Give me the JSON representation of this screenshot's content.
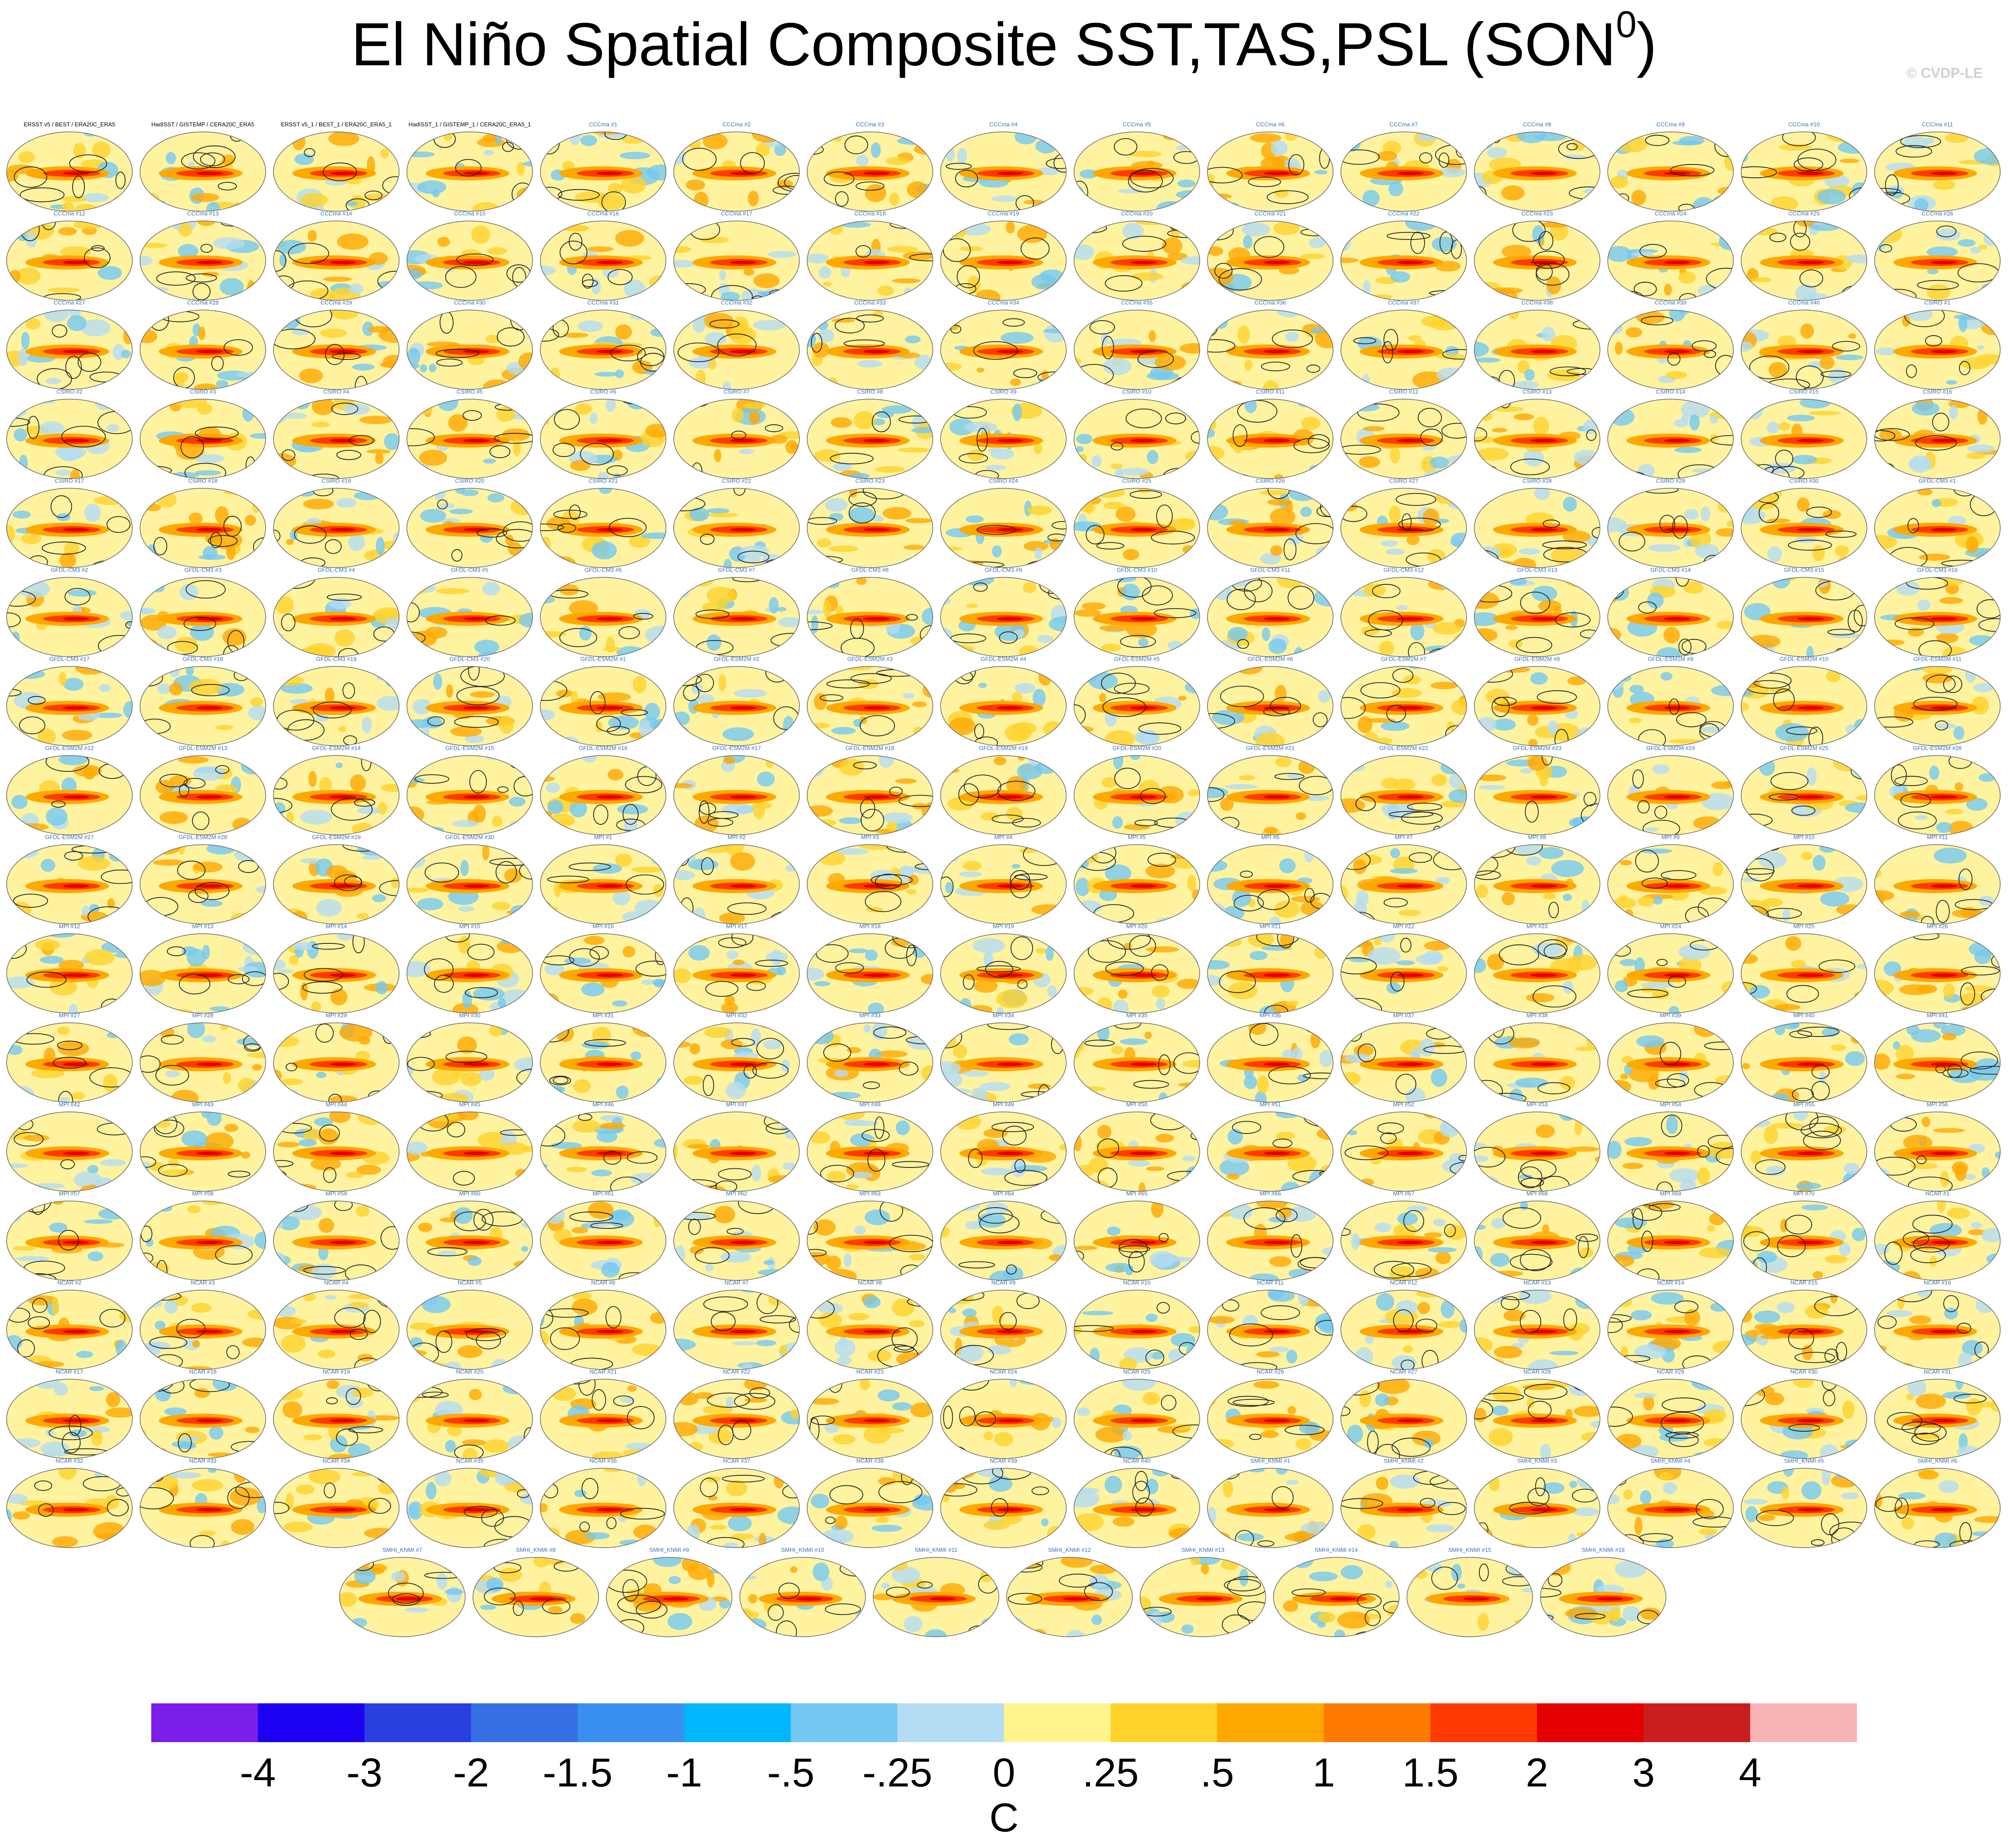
{
  "chart_data": {
    "type": "map-panel-grid",
    "title": "El Niño Spatial Composite SST,TAS,PSL (SON",
    "title_superscript": "0",
    "title_end": ")",
    "watermark": "© CVDP-LE",
    "panels": [
      "ERSST v5 / BEST / ERA20C_ERA5",
      "HadISST / GISTEMP / CERA20C_ERA5",
      "ERSST v5_1 / BEST_1 / ERA20C_ERA5_1",
      "HadISST_1 / GISTEMP_1 / CERA20C_ERA5_1",
      "CCCma #1",
      "CCCma #2",
      "CCCma #3",
      "CCCma #4",
      "CCCma #5",
      "CCCma #6",
      "CCCma #7",
      "CCCma #8",
      "CCCma #9",
      "CCCma #10",
      "CCCma #11",
      "CCCma #12",
      "CCCma #13",
      "CCCma #14",
      "CCCma #15",
      "CCCma #16",
      "CCCma #17",
      "CCCma #18",
      "CCCma #19",
      "CCCma #20",
      "CCCma #21",
      "CCCma #22",
      "CCCma #23",
      "CCCma #24",
      "CCCma #25",
      "CCCma #26",
      "CCCma #27",
      "CCCma #28",
      "CCCma #29",
      "CCCma #30",
      "CCCma #31",
      "CCCma #32",
      "CCCma #33",
      "CCCma #34",
      "CCCma #35",
      "CCCma #36",
      "CCCma #37",
      "CCCma #38",
      "CCCma #39",
      "CCCma #40",
      "CSIRO #1",
      "CSIRO #2",
      "CSIRO #3",
      "CSIRO #4",
      "CSIRO #5",
      "CSIRO #6",
      "CSIRO #7",
      "CSIRO #8",
      "CSIRO #9",
      "CSIRO #10",
      "CSIRO #11",
      "CSIRO #12",
      "CSIRO #13",
      "CSIRO #14",
      "CSIRO #15",
      "CSIRO #16",
      "CSIRO #17",
      "CSIRO #18",
      "CSIRO #19",
      "CSIRO #20",
      "CSIRO #21",
      "CSIRO #22",
      "CSIRO #23",
      "CSIRO #24",
      "CSIRO #25",
      "CSIRO #26",
      "CSIRO #27",
      "CSIRO #28",
      "CSIRO #29",
      "CSIRO #30",
      "GFDL-CM3 #1",
      "GFDL-CM3 #2",
      "GFDL-CM3 #3",
      "GFDL-CM3 #4",
      "GFDL-CM3 #5",
      "GFDL-CM3 #6",
      "GFDL-CM3 #7",
      "GFDL-CM3 #8",
      "GFDL-CM3 #9",
      "GFDL-CM3 #10",
      "GFDL-CM3 #11",
      "GFDL-CM3 #12",
      "GFDL-CM3 #13",
      "GFDL-CM3 #14",
      "GFDL-CM3 #15",
      "GFDL-CM3 #16",
      "GFDL-CM3 #17",
      "GFDL-CM3 #18",
      "GFDL-CM3 #19",
      "GFDL-CM3 #20",
      "GFDL-ESM2M #1",
      "GFDL-ESM2M #2",
      "GFDL-ESM2M #3",
      "GFDL-ESM2M #4",
      "GFDL-ESM2M #5",
      "GFDL-ESM2M #6",
      "GFDL-ESM2M #7",
      "GFDL-ESM2M #8",
      "GFDL-ESM2M #9",
      "GFDL-ESM2M #10",
      "GFDL-ESM2M #11",
      "GFDL-ESM2M #12",
      "GFDL-ESM2M #13",
      "GFDL-ESM2M #14",
      "GFDL-ESM2M #15",
      "GFDL-ESM2M #16",
      "GFDL-ESM2M #17",
      "GFDL-ESM2M #18",
      "GFDL-ESM2M #19",
      "GFDL-ESM2M #20",
      "GFDL-ESM2M #21",
      "GFDL-ESM2M #22",
      "GFDL-ESM2M #23",
      "GFDL-ESM2M #24",
      "GFDL-ESM2M #25",
      "GFDL-ESM2M #26",
      "GFDL-ESM2M #27",
      "GFDL-ESM2M #28",
      "GFDL-ESM2M #29",
      "GFDL-ESM2M #30",
      "MPI #1",
      "MPI #2",
      "MPI #3",
      "MPI #4",
      "MPI #5",
      "MPI #6",
      "MPI #7",
      "MPI #8",
      "MPI #9",
      "MPI #10",
      "MPI #11",
      "MPI #12",
      "MPI #13",
      "MPI #14",
      "MPI #15",
      "MPI #16",
      "MPI #17",
      "MPI #18",
      "MPI #19",
      "MPI #20",
      "MPI #21",
      "MPI #22",
      "MPI #23",
      "MPI #24",
      "MPI #25",
      "MPI #26",
      "MPI #27",
      "MPI #28",
      "MPI #29",
      "MPI #30",
      "MPI #31",
      "MPI #32",
      "MPI #33",
      "MPI #34",
      "MPI #35",
      "MPI #36",
      "MPI #37",
      "MPI #38",
      "MPI #39",
      "MPI #40",
      "MPI #41",
      "MPI #42",
      "MPI #43",
      "MPI #44",
      "MPI #45",
      "MPI #46",
      "MPI #47",
      "MPI #48",
      "MPI #49",
      "MPI #50",
      "MPI #51",
      "MPI #52",
      "MPI #53",
      "MPI #54",
      "MPI #55",
      "MPI #56",
      "MPI #57",
      "MPI #58",
      "MPI #59",
      "MPI #60",
      "MPI #61",
      "MPI #62",
      "MPI #63",
      "MPI #64",
      "MPI #65",
      "MPI #66",
      "MPI #67",
      "MPI #68",
      "MPI #69",
      "MPI #70",
      "NCAR #1",
      "NCAR #2",
      "NCAR #3",
      "NCAR #4",
      "NCAR #5",
      "NCAR #6",
      "NCAR #7",
      "NCAR #8",
      "NCAR #9",
      "NCAR #10",
      "NCAR #11",
      "NCAR #12",
      "NCAR #13",
      "NCAR #14",
      "NCAR #15",
      "NCAR #16",
      "NCAR #17",
      "NCAR #18",
      "NCAR #19",
      "NCAR #20",
      "NCAR #21",
      "NCAR #22",
      "NCAR #23",
      "NCAR #24",
      "NCAR #25",
      "NCAR #26",
      "NCAR #27",
      "NCAR #28",
      "NCAR #29",
      "NCAR #30",
      "NCAR #31",
      "NCAR #32",
      "NCAR #33",
      "NCAR #34",
      "NCAR #35",
      "NCAR #36",
      "NCAR #37",
      "NCAR #38",
      "NCAR #39",
      "NCAR #40",
      "SMHI_KNMI #1",
      "SMHI_KNMI #2",
      "SMHI_KNMI #3",
      "SMHI_KNMI #4",
      "SMHI_KNMI #5",
      "SMHI_KNMI #6",
      "SMHI_KNMI #7",
      "SMHI_KNMI #8",
      "SMHI_KNMI #9",
      "SMHI_KNMI #10",
      "SMHI_KNMI #11",
      "SMHI_KNMI #12",
      "SMHI_KNMI #13",
      "SMHI_KNMI #14",
      "SMHI_KNMI #15",
      "SMHI_KNMI #16"
    ],
    "colorbar": {
      "levels": [
        -4,
        -3,
        -2,
        -1.5,
        -1,
        {
          "value": -0.5,
          "label": "-.5"
        },
        {
          "value": -0.25,
          "label": "-.25"
        },
        0,
        {
          "value": 0.25,
          "label": ".25"
        },
        {
          "value": 0.5,
          "label": ".5"
        },
        1,
        1.5,
        2,
        3,
        4
      ],
      "colors": [
        "#7a1ee8",
        "#1c00f2",
        "#2a3fe0",
        "#3470e4",
        "#3a90f0",
        "#00b6ff",
        "#74c8f2",
        "#b4dcf2",
        "#fff58c",
        "#ffd22c",
        "#ffa800",
        "#ff7a00",
        "#ff3a00",
        "#e40000",
        "#c81e1e",
        "#f8b4b4"
      ],
      "unit": "C"
    }
  }
}
